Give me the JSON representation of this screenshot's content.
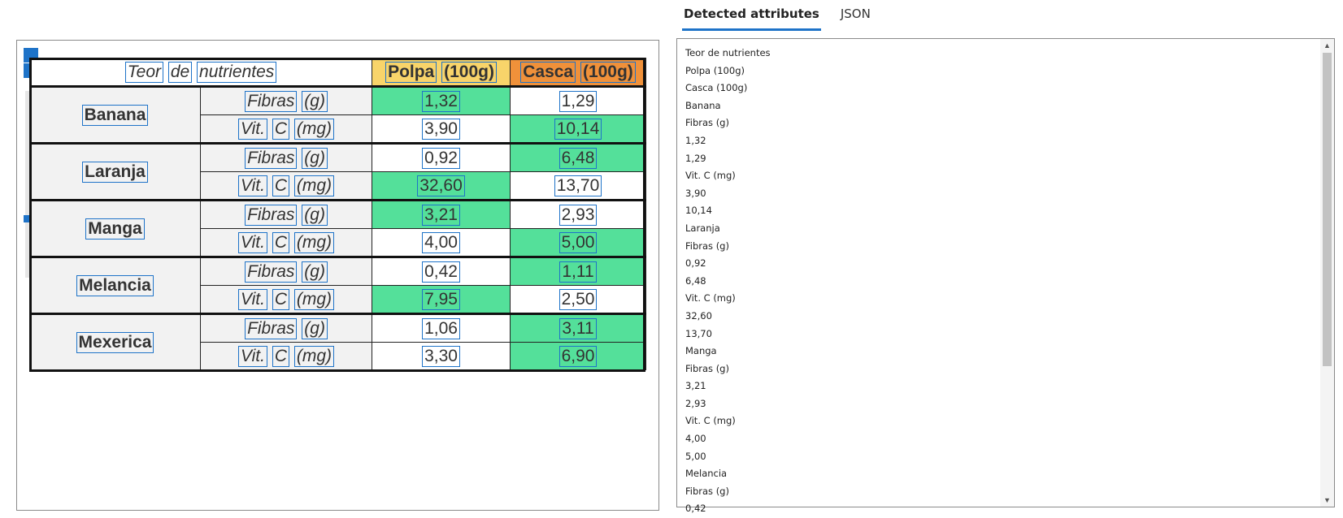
{
  "tabs": [
    {
      "label": "Detected attributes",
      "active": true
    },
    {
      "label": "JSON",
      "active": false
    }
  ],
  "table": {
    "header": {
      "title": "Teor de nutrientes",
      "polpa": "Polpa (100g)",
      "casca": "Casca (100g)"
    },
    "header_words": {
      "title": [
        "Teor",
        "de",
        "nutrientes"
      ],
      "polpa": [
        "Polpa",
        "(100g)"
      ],
      "casca": [
        "Casca",
        "(100g)"
      ]
    },
    "highlight_color": "#54e09a",
    "polpa_color": "#f8d46a",
    "casca_color": "#f0913a",
    "rows": [
      {
        "fruit": "Banana",
        "items": [
          {
            "attr_words": [
              "Fibras",
              "(g)"
            ],
            "polpa": "1,32",
            "casca": "1,29",
            "highlight": "polpa"
          },
          {
            "attr_words": [
              "Vit.",
              "C",
              "(mg)"
            ],
            "polpa": "3,90",
            "casca": "10,14",
            "highlight": "casca"
          }
        ]
      },
      {
        "fruit": "Laranja",
        "items": [
          {
            "attr_words": [
              "Fibras",
              "(g)"
            ],
            "polpa": "0,92",
            "casca": "6,48",
            "highlight": "casca"
          },
          {
            "attr_words": [
              "Vit.",
              "C",
              "(mg)"
            ],
            "polpa": "32,60",
            "casca": "13,70",
            "highlight": "polpa"
          }
        ]
      },
      {
        "fruit": "Manga",
        "items": [
          {
            "attr_words": [
              "Fibras",
              "(g)"
            ],
            "polpa": "3,21",
            "casca": "2,93",
            "highlight": "polpa"
          },
          {
            "attr_words": [
              "Vit.",
              "C",
              "(mg)"
            ],
            "polpa": "4,00",
            "casca": "5,00",
            "highlight": "casca"
          }
        ]
      },
      {
        "fruit": "Melancia",
        "items": [
          {
            "attr_words": [
              "Fibras",
              "(g)"
            ],
            "polpa": "0,42",
            "casca": "1,11",
            "highlight": "casca"
          },
          {
            "attr_words": [
              "Vit.",
              "C",
              "(mg)"
            ],
            "polpa": "7,95",
            "casca": "2,50",
            "highlight": "polpa"
          }
        ]
      },
      {
        "fruit": "Mexerica",
        "items": [
          {
            "attr_words": [
              "Fibras",
              "(g)"
            ],
            "polpa": "1,06",
            "casca": "3,11",
            "highlight": "casca"
          },
          {
            "attr_words": [
              "Vit.",
              "C",
              "(mg)"
            ],
            "polpa": "3,30",
            "casca": "6,90",
            "highlight": "casca"
          }
        ]
      }
    ]
  },
  "attributes": [
    "Teor de nutrientes",
    "Polpa (100g)",
    "Casca (100g)",
    "Banana",
    "Fibras (g)",
    "1,32",
    "1,29",
    "Vit. C (mg)",
    "3,90",
    "10,14",
    "Laranja",
    "Fibras (g)",
    "0,92",
    "6,48",
    "Vit. C (mg)",
    "32,60",
    "13,70",
    "Manga",
    "Fibras (g)",
    "3,21",
    "2,93",
    "Vit. C (mg)",
    "4,00",
    "5,00",
    "Melancia",
    "Fibras (g)",
    "0,42"
  ],
  "scrollbar": {
    "up_icon": "scroll-up-icon",
    "down_icon": "scroll-down-icon"
  }
}
